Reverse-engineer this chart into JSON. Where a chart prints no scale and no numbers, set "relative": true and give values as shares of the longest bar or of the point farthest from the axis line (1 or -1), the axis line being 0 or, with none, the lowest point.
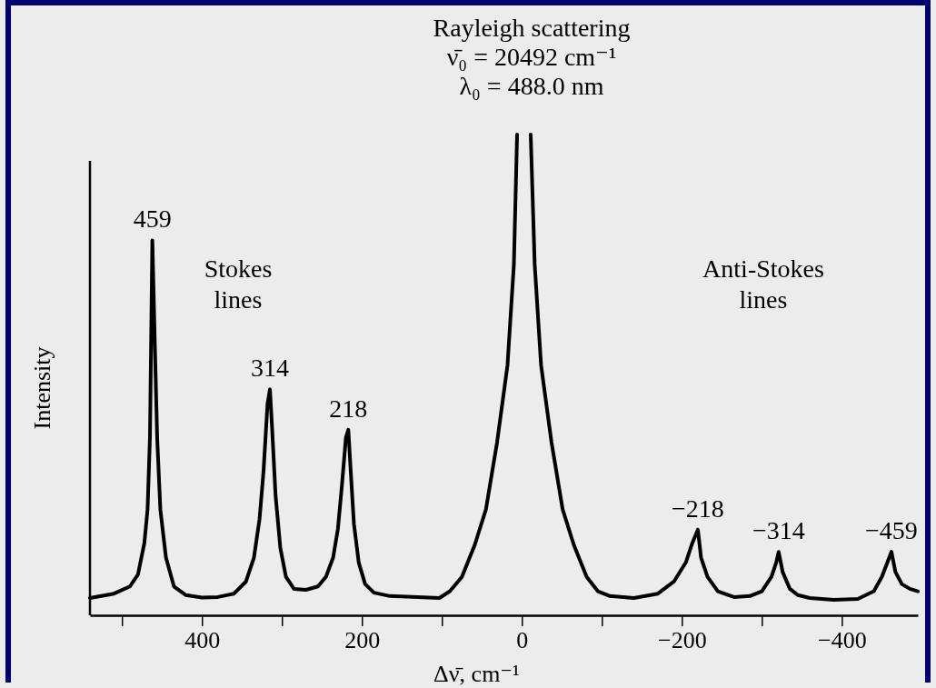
{
  "chart_data": {
    "type": "line",
    "relative": true,
    "xlabel": "Δν̄, cm⁻¹",
    "ylabel": "Intensity",
    "xlim": [
      540,
      -495
    ],
    "xticks": [
      {
        "value": 500,
        "label": null
      },
      400,
      {
        "value": 300,
        "label": null
      },
      200,
      {
        "value": 100,
        "label": null
      },
      0,
      {
        "value": -100,
        "label": null
      },
      {
        "value": -200,
        "label": "−200"
      },
      {
        "value": -300,
        "label": null
      },
      {
        "value": -400,
        "label": "−400"
      }
    ],
    "series": [
      {
        "color": "#000000",
        "x": [
          540,
          510,
          490,
          480,
          472,
          468,
          465,
          462,
          459,
          456,
          452,
          445,
          435,
          420,
          400,
          380,
          360,
          345,
          335,
          328,
          323,
          318,
          315,
          312,
          308,
          302,
          295,
          285,
          270,
          255,
          245,
          236,
          230,
          225,
          220,
          217,
          214,
          210,
          204,
          196,
          185,
          165,
          130,
          103,
          90,
          75,
          59,
          45,
          31,
          18,
          10,
          6,
          -2,
          -11,
          -16,
          -24,
          -37,
          -51,
          -65,
          -81,
          -95,
          -110,
          -140,
          -170,
          -190,
          -205,
          -213,
          -220,
          -224,
          -232,
          -245,
          -265,
          -285,
          -300,
          -312,
          -318,
          -321,
          -326,
          -335,
          -345,
          -360,
          -390,
          -420,
          -440,
          -450,
          -457,
          -462,
          -467,
          -475,
          -485,
          -495
        ],
        "values": [
          0.036,
          0.045,
          0.06,
          0.085,
          0.15,
          0.22,
          0.37,
          0.78,
          0.57,
          0.37,
          0.22,
          0.12,
          0.06,
          0.042,
          0.037,
          0.038,
          0.045,
          0.07,
          0.12,
          0.2,
          0.3,
          0.44,
          0.47,
          0.38,
          0.25,
          0.14,
          0.08,
          0.055,
          0.053,
          0.06,
          0.08,
          0.12,
          0.18,
          0.27,
          0.37,
          0.386,
          0.3,
          0.19,
          0.11,
          0.065,
          0.047,
          0.04,
          0.038,
          0.036,
          0.05,
          0.08,
          0.146,
          0.22,
          0.36,
          0.52,
          0.73,
          1,
          null,
          1,
          0.73,
          0.52,
          0.36,
          0.22,
          0.146,
          0.08,
          0.05,
          0.04,
          0.036,
          0.045,
          0.07,
          0.11,
          0.15,
          0.178,
          0.12,
          0.08,
          0.05,
          0.038,
          0.04,
          0.05,
          0.08,
          0.11,
          0.132,
          0.09,
          0.055,
          0.042,
          0.036,
          0.032,
          0.034,
          0.05,
          0.08,
          0.11,
          0.132,
          0.09,
          0.065,
          0.055,
          0.05
        ]
      }
    ],
    "annotations": [
      "Rayleigh scattering",
      "ν̄₀ = 20492 cm⁻¹",
      "λ₀ = 488.0 nm",
      "Stokes lines",
      "Anti-Stokes lines",
      {
        "text": "459",
        "x": 462,
        "y": 0.78
      },
      {
        "text": "314",
        "x": 315,
        "y": 0.47
      },
      {
        "text": "218",
        "x": 217,
        "y": 0.386
      },
      {
        "text": "−218",
        "x": -220,
        "y": 0.178
      },
      {
        "text": "−314",
        "x": -321,
        "y": 0.132
      },
      {
        "text": "−459",
        "x": -462,
        "y": 0.132
      }
    ]
  }
}
